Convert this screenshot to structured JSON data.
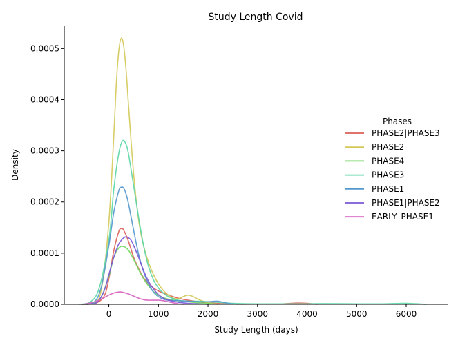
{
  "chart_data": {
    "type": "line",
    "title": "Study Length Covid",
    "xlabel": "Study Length (days)",
    "ylabel": "Density",
    "xlim": [
      -900,
      6850
    ],
    "ylim": [
      0,
      0.000545
    ],
    "xticks": [
      {
        "value": 0,
        "label": "0"
      },
      {
        "value": 1000,
        "label": "1000"
      },
      {
        "value": 2000,
        "label": "2000"
      },
      {
        "value": 3000,
        "label": "3000"
      },
      {
        "value": 4000,
        "label": "4000"
      },
      {
        "value": 5000,
        "label": "5000"
      },
      {
        "value": 6000,
        "label": "6000"
      }
    ],
    "yticks": [
      {
        "value": 0,
        "label": "0.0000"
      },
      {
        "value": 0.0001,
        "label": "0.0001"
      },
      {
        "value": 0.0002,
        "label": "0.0002"
      },
      {
        "value": 0.0003,
        "label": "0.0003"
      },
      {
        "value": 0.0004,
        "label": "0.0004"
      },
      {
        "value": 0.0005,
        "label": "0.0005"
      }
    ],
    "grid": false,
    "legend": {
      "title": "Phases",
      "placement": "right"
    },
    "series": [
      {
        "name": "PHASE2|PHASE3",
        "color": "#db5f57",
        "x": [
          -550,
          -300,
          -100,
          0,
          100,
          200,
          250,
          300,
          400,
          500,
          600,
          700,
          800,
          900,
          1000,
          1200,
          1400,
          1600,
          1800,
          2000,
          2500,
          3000,
          3500,
          3800,
          4000,
          4200
        ],
        "y": [
          0,
          1e-06,
          1.5e-05,
          5e-05,
          0.000105,
          0.000142,
          0.000148,
          0.000145,
          0.000122,
          9.2e-05,
          7e-05,
          5.2e-05,
          4e-05,
          3.2e-05,
          2.6e-05,
          1.8e-05,
          1.2e-05,
          8e-06,
          5e-06,
          3e-06,
          5e-07,
          5e-07,
          1e-06,
          2.5e-06,
          2e-06,
          0
        ]
      },
      {
        "name": "PHASE2",
        "color": "#d3c856",
        "x": [
          -550,
          -300,
          -150,
          0,
          100,
          150,
          200,
          250,
          300,
          350,
          400,
          500,
          600,
          700,
          800,
          900,
          1000,
          1100,
          1200,
          1300,
          1400,
          1500,
          1600,
          1700,
          1800,
          1900,
          2000,
          2200
        ],
        "y": [
          0,
          2e-06,
          3e-05,
          0.00016,
          0.00033,
          0.00043,
          0.000495,
          0.00052,
          0.000505,
          0.000455,
          0.000385,
          0.000255,
          0.000165,
          0.000115,
          8.2e-05,
          5.8e-05,
          4e-05,
          2.7e-05,
          1.8e-05,
          1.2e-05,
          1.1e-05,
          1.5e-05,
          1.8e-05,
          1.5e-05,
          1e-05,
          6e-06,
          3e-06,
          0
        ]
      },
      {
        "name": "PHASE4",
        "color": "#71d65f",
        "x": [
          -500,
          -300,
          -150,
          0,
          100,
          200,
          300,
          400,
          500,
          600,
          700,
          800,
          900,
          1000,
          1100,
          1200,
          1400,
          1600,
          1800,
          2000,
          2200
        ],
        "y": [
          0,
          2e-06,
          1.5e-05,
          5.5e-05,
          9.2e-05,
          0.00011,
          0.000113,
          0.000105,
          8.8e-05,
          6.8e-05,
          5e-05,
          3.6e-05,
          2.5e-05,
          1.8e-05,
          1.3e-05,
          1e-05,
          7e-06,
          5e-06,
          3e-06,
          2e-06,
          0
        ]
      },
      {
        "name": "PHASE3",
        "color": "#5bd6a6",
        "x": [
          -600,
          -400,
          -200,
          0,
          100,
          200,
          280,
          350,
          400,
          500,
          600,
          700,
          800,
          900,
          1000,
          1100,
          1200,
          1400,
          1600,
          1800,
          2000,
          2200,
          2500,
          3000,
          3500,
          4000,
          4300,
          5000,
          5500,
          6000,
          6400
        ],
        "y": [
          0,
          3e-06,
          3e-05,
          0.000125,
          0.000225,
          0.000295,
          0.00032,
          0.000312,
          0.000292,
          0.000232,
          0.00017,
          0.000115,
          7.4e-05,
          4.8e-05,
          3.2e-05,
          2.2e-05,
          1.5e-05,
          8e-06,
          6e-06,
          6e-06,
          5e-06,
          4e-06,
          2e-06,
          1e-06,
          1e-06,
          1e-06,
          1.5e-06,
          1e-06,
          1e-06,
          2e-06,
          0
        ]
      },
      {
        "name": "PHASE1",
        "color": "#5397cd",
        "x": [
          -550,
          -300,
          -150,
          0,
          100,
          200,
          250,
          300,
          350,
          400,
          500,
          600,
          700,
          800,
          900,
          1000,
          1100,
          1200,
          1400,
          1600,
          1800,
          2000,
          2200,
          2400,
          2600
        ],
        "y": [
          0,
          4e-06,
          3.5e-05,
          0.000115,
          0.00018,
          0.000222,
          0.000229,
          0.000227,
          0.000215,
          0.000195,
          0.000145,
          9.8e-05,
          6.4e-05,
          4e-05,
          2.4e-05,
          1.5e-05,
          1e-05,
          8e-06,
          7e-06,
          6e-06,
          5e-06,
          5e-06,
          6e-06,
          2e-06,
          0
        ]
      },
      {
        "name": "PHASE1|PHASE2",
        "color": "#7a57d6",
        "x": [
          -450,
          -250,
          -100,
          0,
          100,
          200,
          300,
          350,
          400,
          450,
          500,
          600,
          700,
          800,
          900,
          1000,
          1100,
          1200,
          1400,
          1600,
          1800,
          2000
        ],
        "y": [
          0,
          3e-06,
          2.5e-05,
          5.8e-05,
          9.2e-05,
          0.000118,
          0.00013,
          0.000132,
          0.00013,
          0.000125,
          0.000115,
          9.2e-05,
          6.6e-05,
          4.5e-05,
          3e-05,
          1.9e-05,
          1.2e-05,
          8e-06,
          4e-06,
          2e-06,
          1e-06,
          0
        ]
      },
      {
        "name": "EARLY_PHASE1",
        "color": "#d65fbd",
        "x": [
          -550,
          -400,
          -200,
          0,
          100,
          200,
          250,
          300,
          400,
          500,
          600,
          700,
          800,
          900,
          1000,
          1100,
          1200,
          1300,
          1400,
          1500
        ],
        "y": [
          0,
          2e-06,
          8e-06,
          1.8e-05,
          2.2e-05,
          2.4e-05,
          2.4e-05,
          2.3e-05,
          2e-05,
          1.6e-05,
          1.2e-05,
          9e-06,
          8e-06,
          8e-06,
          8e-06,
          7e-06,
          5e-06,
          3e-06,
          1e-06,
          0
        ]
      }
    ]
  }
}
